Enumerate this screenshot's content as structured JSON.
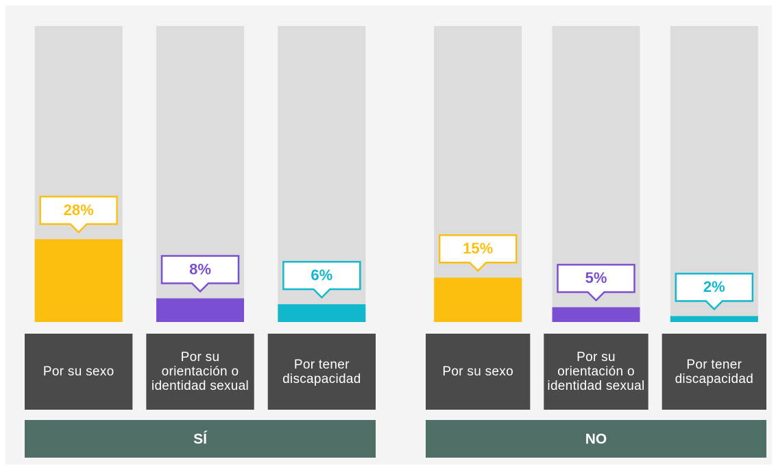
{
  "chart_data": [
    {
      "type": "bar",
      "group_label": "SÍ",
      "categories": [
        "Por su sexo",
        "Por su orientación o identidad sexual",
        "Por tener discapacidad"
      ],
      "values": [
        28,
        8,
        6
      ],
      "value_labels": [
        "28%",
        "8%",
        "6%"
      ],
      "colors": [
        "#fdbf0f",
        "#7b4fd1",
        "#11b8cc"
      ],
      "ylim": [
        0,
        100
      ]
    },
    {
      "type": "bar",
      "group_label": "NO",
      "categories": [
        "Por su sexo",
        "Por su orientación o identidad sexual",
        "Por tener discapacidad"
      ],
      "values": [
        15,
        5,
        2
      ],
      "value_labels": [
        "15%",
        "5%",
        "2%"
      ],
      "colors": [
        "#fdbf0f",
        "#7b4fd1",
        "#11b8cc"
      ],
      "ylim": [
        0,
        100
      ]
    }
  ]
}
